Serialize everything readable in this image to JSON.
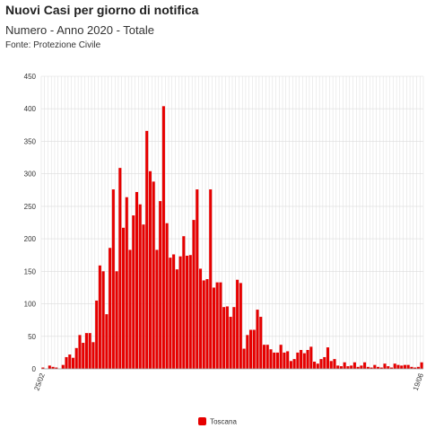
{
  "title": "Nuovi Casi per giorno di notifica",
  "subtitle": "Numero - Anno 2020 - Totale",
  "source": "Fonte: Protezione Civile",
  "colors": {
    "bar": "#e60000",
    "grid": "#dcdcdc",
    "axis": "#999999"
  },
  "chart_data": {
    "type": "bar",
    "series": [
      {
        "name": "Toscana",
        "values": [
          2,
          0,
          5,
          3,
          2,
          0,
          6,
          18,
          22,
          17,
          32,
          52,
          40,
          55,
          55,
          41,
          105,
          159,
          150,
          84,
          186,
          276,
          150,
          309,
          217,
          264,
          183,
          236,
          272,
          253,
          222,
          366,
          304,
          288,
          183,
          258,
          404,
          224,
          171,
          176,
          153,
          173,
          204,
          174,
          175,
          229,
          276,
          154,
          136,
          138,
          276,
          125,
          133,
          133,
          95,
          96,
          80,
          95,
          137,
          132,
          31,
          52,
          60,
          60,
          91,
          80,
          37,
          37,
          30,
          25,
          25,
          37,
          25,
          27,
          12,
          15,
          25,
          29,
          24,
          29,
          34,
          11,
          8,
          15,
          18,
          33,
          12,
          15,
          5,
          4,
          10,
          4,
          5,
          10,
          3,
          5,
          10,
          3,
          2,
          6,
          3,
          2,
          8,
          4,
          2,
          8,
          6,
          5,
          6,
          6,
          3,
          2,
          3,
          10
        ]
      }
    ],
    "x_start_label": "25/02",
    "x_end_label": "19/06",
    "yticks": [
      0,
      50,
      100,
      150,
      200,
      250,
      300,
      350,
      400,
      450
    ],
    "ylim": [
      0,
      450
    ],
    "grid": true,
    "legend_position": "bottom-center"
  }
}
